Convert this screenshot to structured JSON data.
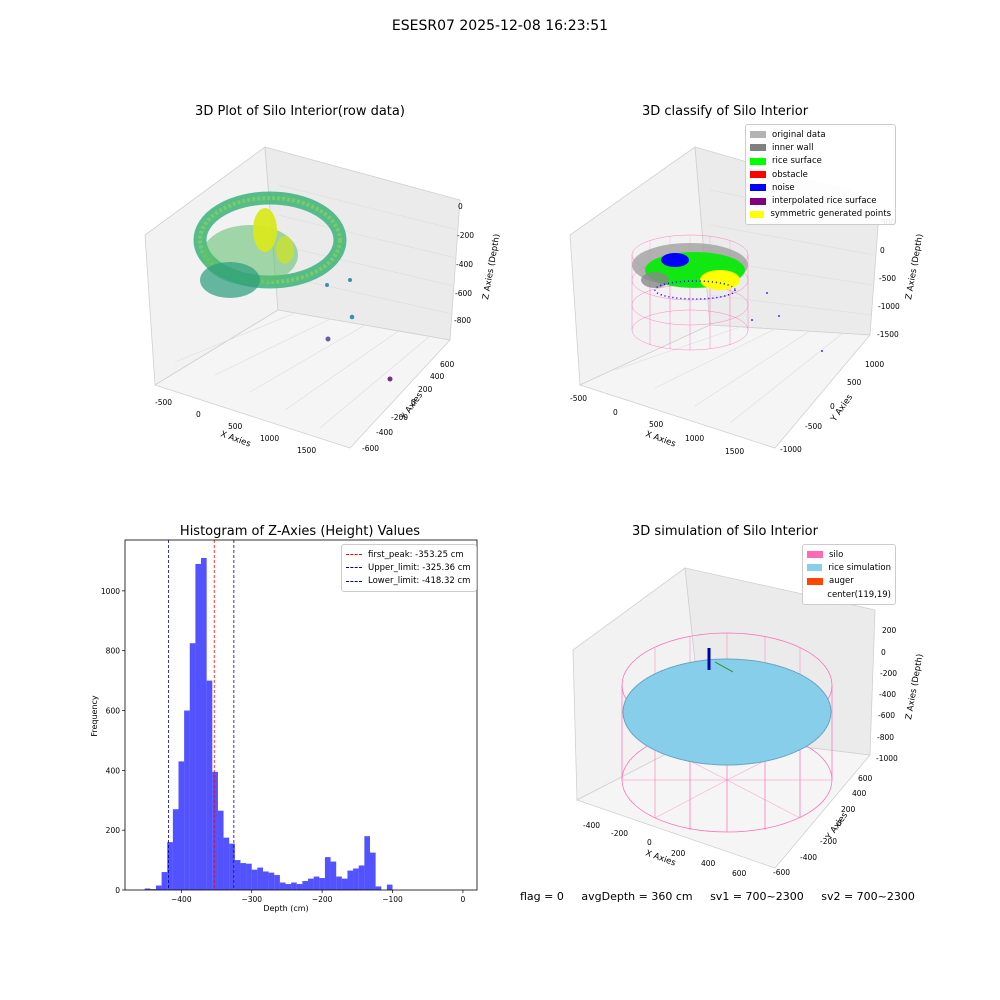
{
  "suptitle": "ESESR07 2025-12-08 16:23:51",
  "colors": {
    "original": "#b3b3b3",
    "wall": "#808080",
    "rice_surface": "#00ff00",
    "obstacle": "#ff0000",
    "noise": "#0000ff",
    "interp": "#800080",
    "symmetric": "#ffff00",
    "silo": "#ff69b4",
    "rice_sim": "#87ceeb",
    "auger": "#ff4500",
    "hist_bar": "#0000ff",
    "peak_line": "#ff0000",
    "limit_line": "#0000aa"
  },
  "chart_data": [
    {
      "type": "scatter",
      "title": "3D Plot of Silo Interior(row data)",
      "xlabel": "X Axies",
      "ylabel": "Y Axies",
      "zlabel": "Z Axies (Depth)",
      "x_ticks": [
        "-500",
        "0",
        "500",
        "1000",
        "1500"
      ],
      "y_ticks": [
        "-600",
        "-400",
        "-200",
        "0",
        "200",
        "400",
        "600"
      ],
      "z_ticks": [
        "0",
        "-200",
        "-400",
        "-600",
        "-800"
      ],
      "outliers": [
        {
          "x": 900,
          "y": -150,
          "z": -350
        },
        {
          "x": 1150,
          "y": -100,
          "z": -450
        },
        {
          "x": 1400,
          "y": -250,
          "z": -550
        },
        {
          "x": 1700,
          "y": -400,
          "z": -800
        }
      ]
    },
    {
      "type": "scatter",
      "title": "3D classify of Silo Interior",
      "xlabel": "X Axies",
      "ylabel": "Y Axies",
      "zlabel": "Z Axies (Depth)",
      "x_ticks": [
        "-500",
        "0",
        "500",
        "1000",
        "1500"
      ],
      "y_ticks": [
        "-1000",
        "-500",
        "0",
        "500",
        "1000"
      ],
      "z_ticks": [
        "500",
        "0",
        "-500",
        "-1000",
        "-1500"
      ],
      "legend": [
        "original data",
        "inner wall",
        "rice surface",
        "obstacle",
        "noise",
        "interpolated rice surface",
        "symmetric generated points"
      ]
    },
    {
      "type": "bar",
      "title": "Histogram of Z-Axies (Height) Values",
      "xlabel": "Depth (cm)",
      "ylabel": "Frequency",
      "xlim": [
        -480,
        20
      ],
      "ylim": [
        0,
        1170
      ],
      "x_ticks": [
        -400,
        -300,
        -200,
        -100,
        0
      ],
      "y_ticks": [
        0,
        200,
        400,
        600,
        800,
        1000
      ],
      "bin_width": 8,
      "bins": [
        {
          "x": -452,
          "count": 5
        },
        {
          "x": -444,
          "count": 3
        },
        {
          "x": -436,
          "count": 15
        },
        {
          "x": -428,
          "count": 60
        },
        {
          "x": -420,
          "count": 160
        },
        {
          "x": -412,
          "count": 270
        },
        {
          "x": -404,
          "count": 430
        },
        {
          "x": -396,
          "count": 600
        },
        {
          "x": -388,
          "count": 825
        },
        {
          "x": -380,
          "count": 1090
        },
        {
          "x": -372,
          "count": 1110
        },
        {
          "x": -364,
          "count": 700
        },
        {
          "x": -356,
          "count": 395
        },
        {
          "x": -348,
          "count": 265
        },
        {
          "x": -340,
          "count": 175
        },
        {
          "x": -332,
          "count": 155
        },
        {
          "x": -324,
          "count": 100
        },
        {
          "x": -316,
          "count": 90
        },
        {
          "x": -308,
          "count": 88
        },
        {
          "x": -300,
          "count": 68
        },
        {
          "x": -292,
          "count": 75
        },
        {
          "x": -284,
          "count": 62
        },
        {
          "x": -276,
          "count": 58
        },
        {
          "x": -268,
          "count": 50
        },
        {
          "x": -260,
          "count": 25
        },
        {
          "x": -252,
          "count": 20
        },
        {
          "x": -244,
          "count": 25
        },
        {
          "x": -236,
          "count": 20
        },
        {
          "x": -228,
          "count": 30
        },
        {
          "x": -220,
          "count": 38
        },
        {
          "x": -212,
          "count": 45
        },
        {
          "x": -204,
          "count": 40
        },
        {
          "x": -196,
          "count": 110
        },
        {
          "x": -188,
          "count": 95
        },
        {
          "x": -180,
          "count": 45
        },
        {
          "x": -172,
          "count": 38
        },
        {
          "x": -164,
          "count": 65
        },
        {
          "x": -156,
          "count": 72
        },
        {
          "x": -148,
          "count": 82
        },
        {
          "x": -140,
          "count": 180
        },
        {
          "x": -132,
          "count": 125
        },
        {
          "x": -124,
          "count": 12
        },
        {
          "x": -116,
          "count": 0
        },
        {
          "x": -108,
          "count": 18
        }
      ],
      "bins_note_offset": 0,
      "vlines": [
        {
          "label": "first_peak: -353.25 cm",
          "x": -353.25,
          "kind": "peak"
        },
        {
          "label": "Upper_limit: -325.36 cm",
          "x": -325.36,
          "kind": "limit"
        },
        {
          "label": "Lower_limit: -418.32 cm",
          "x": -418.32,
          "kind": "limit"
        }
      ]
    },
    {
      "type": "scatter",
      "title": "3D simulation of Silo Interior",
      "xlabel": "X Axies",
      "ylabel": "Y Axies",
      "zlabel": "Z Axies (Depth)",
      "x_ticks": [
        "-400",
        "-200",
        "0",
        "200",
        "400",
        "600"
      ],
      "y_ticks": [
        "-600",
        "-400",
        "-200",
        "0",
        "200",
        "400",
        "600"
      ],
      "z_ticks": [
        "200",
        "0",
        "-200",
        "-400",
        "-600",
        "-800",
        "-1000"
      ],
      "legend": [
        "silo",
        "rice simulation",
        "auger",
        "center(119,19)"
      ]
    }
  ],
  "footer": {
    "flag": "flag = 0",
    "avg": "avgDepth = 360 cm",
    "sv1": "sv1 = 700~2300",
    "sv2": "sv2 = 700~2300"
  }
}
